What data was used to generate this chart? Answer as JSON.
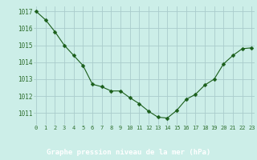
{
  "x": [
    0,
    1,
    2,
    3,
    4,
    5,
    6,
    7,
    8,
    9,
    10,
    11,
    12,
    13,
    14,
    15,
    16,
    17,
    18,
    19,
    20,
    21,
    22,
    23
  ],
  "y": [
    1017.0,
    1016.5,
    1015.8,
    1015.0,
    1014.4,
    1013.8,
    1012.7,
    1012.55,
    1012.3,
    1012.3,
    1011.9,
    1011.55,
    1011.1,
    1010.75,
    1010.7,
    1011.15,
    1011.8,
    1012.1,
    1012.65,
    1013.0,
    1013.9,
    1014.4,
    1014.8,
    1014.85
  ],
  "line_color": "#1a5e1a",
  "marker": "D",
  "marker_size": 2.5,
  "bg_color": "#cceee8",
  "grid_color": "#aacccc",
  "bottom_bar_color": "#2d6e2d",
  "title": "Graphe pression niveau de la mer (hPa)",
  "title_color": "#ffffff",
  "title_fontsize": 6.5,
  "ytick_fontsize": 5.5,
  "xtick_fontsize": 5.0,
  "yticks": [
    1011,
    1012,
    1013,
    1014,
    1015,
    1016,
    1017
  ],
  "xticks": [
    0,
    1,
    2,
    3,
    4,
    5,
    6,
    7,
    8,
    9,
    10,
    11,
    12,
    13,
    14,
    15,
    16,
    17,
    18,
    19,
    20,
    21,
    22,
    23
  ],
  "ylim": [
    1010.3,
    1017.3
  ],
  "xlim": [
    -0.3,
    23.3
  ]
}
